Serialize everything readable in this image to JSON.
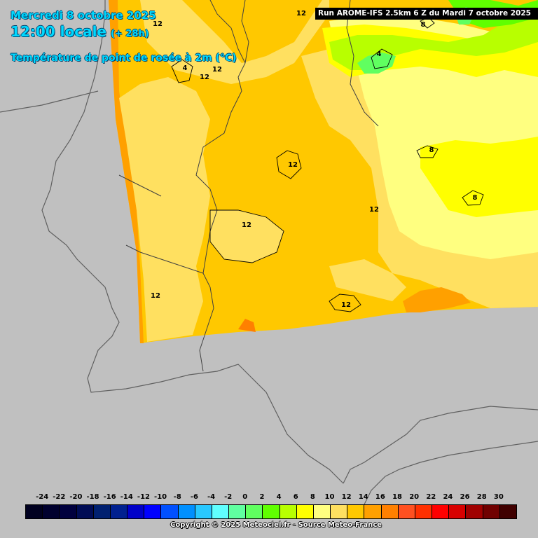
{
  "header": {
    "date": "Mercredi 8 octobre 2025",
    "time": "12:00 locale",
    "lead": "(+ 28h)",
    "parameter": "Température de point de rosée à 2m (°C)"
  },
  "run_banner": "Run AROME-IFS 2.5km 6 Z du Mardi 7 octobre 2025",
  "contour_labels": [
    "12",
    "12",
    "12",
    "12",
    "12",
    "12",
    "12",
    "12",
    "12",
    "8",
    "8",
    "8",
    "4",
    "4"
  ],
  "legend": {
    "ticks": [
      "-24",
      "-22",
      "-20",
      "-18",
      "-16",
      "-14",
      "-12",
      "-10",
      "-8",
      "-6",
      "-4",
      "-2",
      "0",
      "2",
      "4",
      "6",
      "8",
      "10",
      "12",
      "14",
      "16",
      "18",
      "20",
      "22",
      "24",
      "26",
      "28",
      "30"
    ],
    "colors": [
      "#000020",
      "#00002e",
      "#00003e",
      "#000c55",
      "#002070",
      "#00208f",
      "#0000c8",
      "#0000ff",
      "#0050ff",
      "#0090ff",
      "#28c8ff",
      "#60ffff",
      "#60ffa0",
      "#60ff60",
      "#60ff00",
      "#b8ff00",
      "#ffff00",
      "#ffff80",
      "#ffe060",
      "#ffc800",
      "#ffa000",
      "#ff8000",
      "#ff5020",
      "#ff3000",
      "#ff0000",
      "#d80000",
      "#a00000",
      "#700000",
      "#400000"
    ],
    "palette": {
      "bg": "#c0c0c0",
      "c4": "#60ff60",
      "c6": "#b8ff00",
      "c8": "#ffff00",
      "c10": "#ffff80",
      "c12": "#ffe060",
      "c14": "#ffc800",
      "c16": "#ffa000",
      "c18": "#ff8000"
    }
  },
  "copyright": "Copyright © 2025 Meteociel.fr - Source Meteo-France"
}
